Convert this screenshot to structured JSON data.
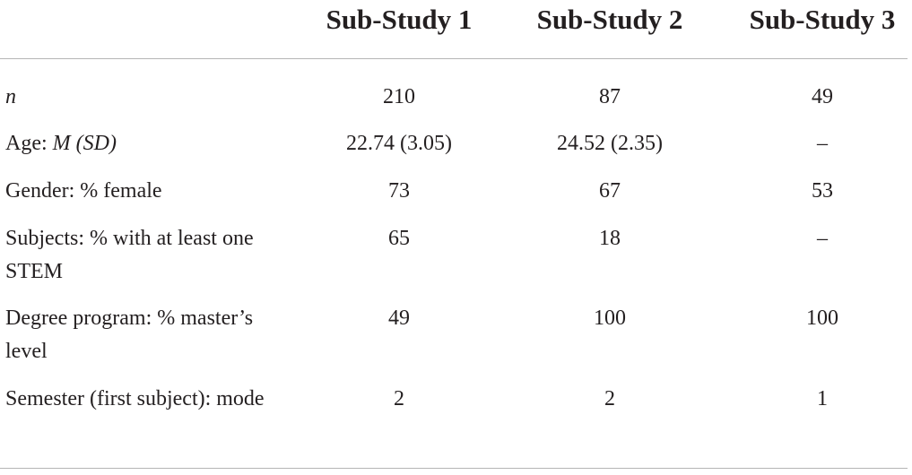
{
  "table": {
    "headers": [
      "Sub-Study 1",
      "Sub-Study 2",
      "Sub-Study 3"
    ],
    "rows": [
      {
        "label_italic": "n",
        "cells": [
          "210",
          "87",
          "49"
        ]
      },
      {
        "label": "Age:",
        "label_italic": "M (SD)",
        "cells": [
          "22.74 (3.05)",
          "24.52 (2.35)",
          "–"
        ]
      },
      {
        "label": "Gender: % female",
        "cells": [
          "73",
          "67",
          "53"
        ]
      },
      {
        "label": "Subjects: % with at least one STEM",
        "cells": [
          "65",
          "18",
          "–"
        ]
      },
      {
        "label": "Degree program: % master’s level",
        "cells": [
          "49",
          "100",
          "100"
        ]
      },
      {
        "label": "Semester (first subject): mode",
        "cells": [
          "2",
          "2",
          "1"
        ]
      }
    ]
  }
}
